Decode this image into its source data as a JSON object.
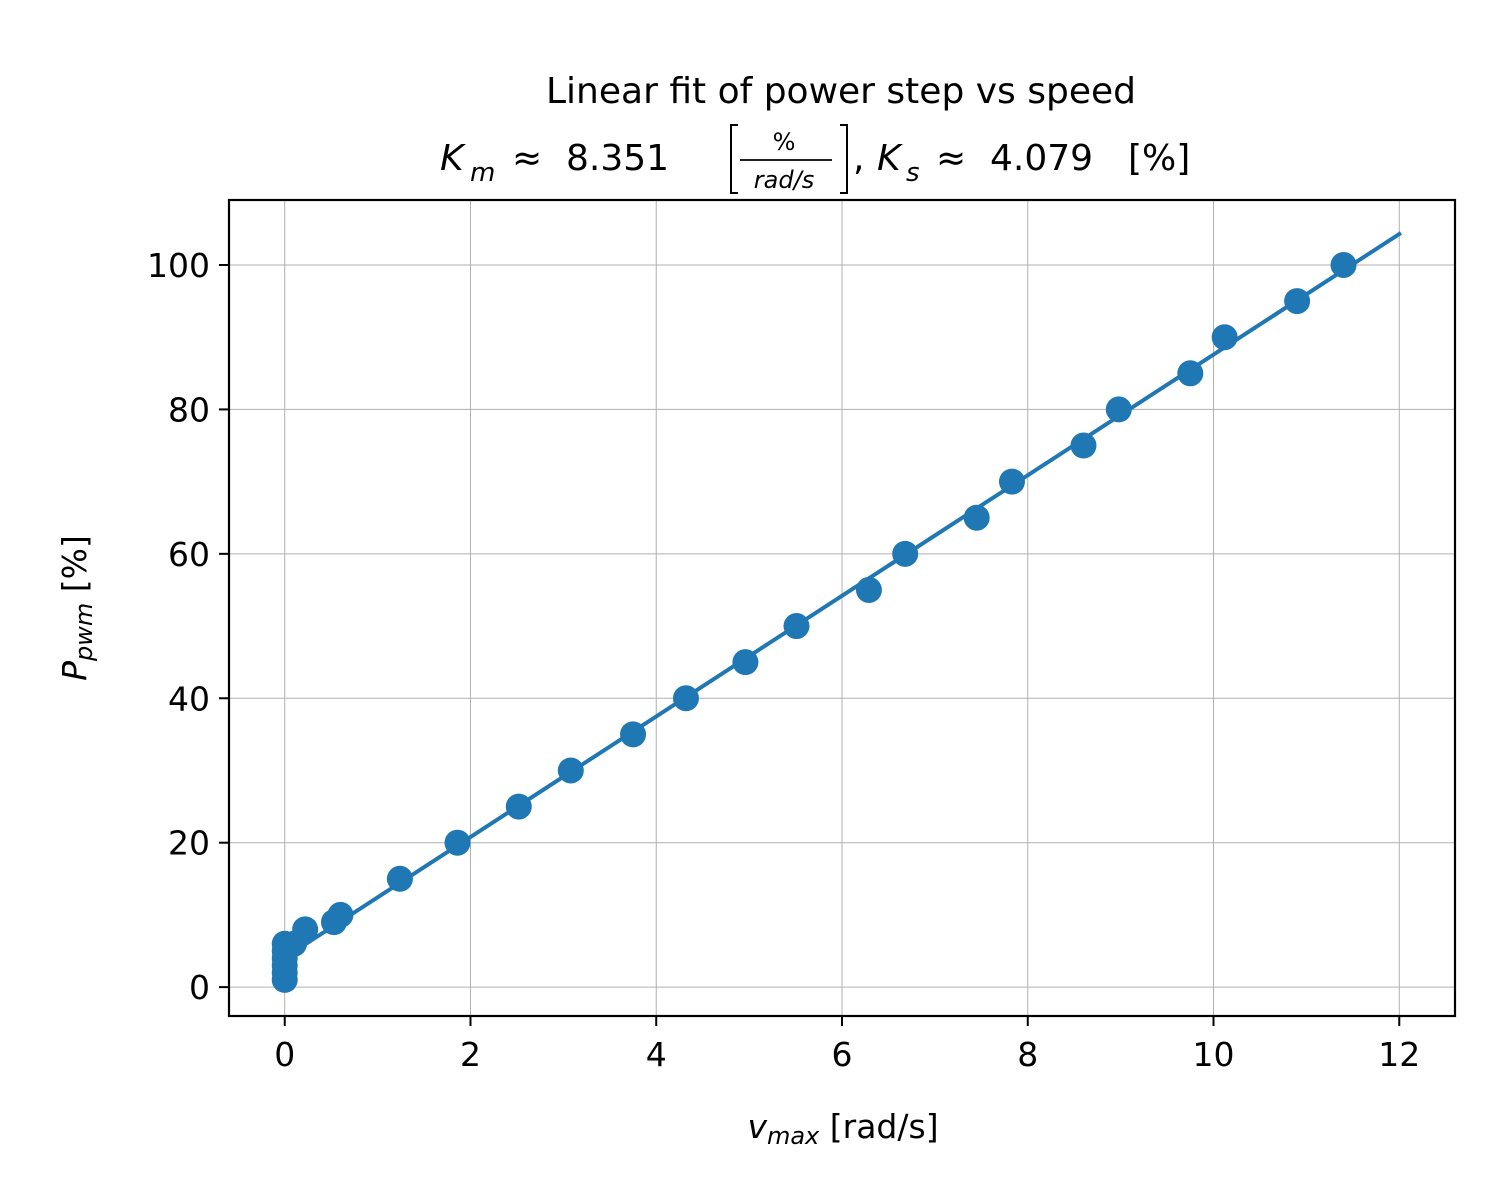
{
  "chart_data": {
    "type": "scatter",
    "title": "Linear fit of power step vs speed",
    "subtitle_parts": {
      "km_symbol": "K",
      "km_sub": "m",
      "approx": "≈",
      "km_value": "8.351",
      "unit_num": "%",
      "unit_den": "rad/s",
      "sep": ",",
      "ks_symbol": "K",
      "ks_sub": "s",
      "ks_value": "4.079",
      "ks_unit": "[%]"
    },
    "xlabel": {
      "sym": "v",
      "sub": "max",
      "unit": "[rad/s]"
    },
    "ylabel": {
      "sym": "P",
      "sub": "pwm",
      "unit": "[%]"
    },
    "xlim": [
      -0.6,
      12.6
    ],
    "ylim": [
      -4,
      109
    ],
    "xticks": [
      0,
      2,
      4,
      6,
      8,
      10,
      12
    ],
    "yticks": [
      0,
      20,
      40,
      60,
      80,
      100
    ],
    "grid": true,
    "color": "#1f77b4",
    "fit": {
      "slope": 8.351,
      "intercept": 4.079,
      "x_range": [
        0.0,
        12.0
      ]
    },
    "points": {
      "x": [
        0.0,
        0.0,
        0.0,
        0.0,
        0.0,
        0.0,
        0.1,
        0.22,
        0.53,
        0.6,
        1.24,
        1.86,
        2.52,
        3.08,
        3.75,
        4.32,
        4.96,
        5.51,
        6.29,
        6.68,
        7.45,
        7.83,
        8.6,
        8.98,
        9.75,
        10.12,
        10.9,
        11.4
      ],
      "y": [
        1,
        2,
        3,
        4,
        5,
        6,
        6,
        8,
        9,
        10,
        15,
        20,
        25,
        30,
        35,
        40,
        45,
        50,
        55,
        60,
        65,
        70,
        75,
        80,
        85,
        90,
        95,
        100
      ]
    }
  }
}
